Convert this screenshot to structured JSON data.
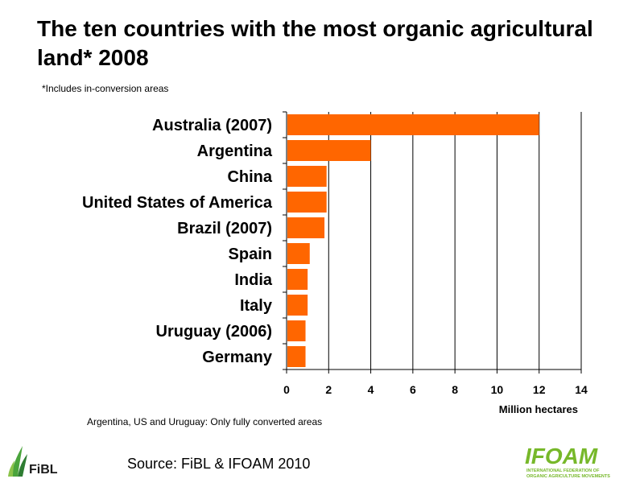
{
  "title": "The ten countries with the most organic agricultural land* 2008",
  "subtitle": "*Includes in-conversion areas",
  "footnote": "Argentina, US and Uruguay: Only fully converted areas",
  "source": "Source: FiBL & IFOAM 2010",
  "logos": {
    "fibl": "FiBL",
    "ifoam": "IFOAM",
    "ifoam_tagline_1": "INTERNATIONAL FEDERATION OF",
    "ifoam_tagline_2": "ORGANIC AGRICULTURE MOVEMENTS"
  },
  "colors": {
    "bar": "#ff6600",
    "grid": "#000000",
    "ifoam_green": "#77b82a",
    "fibl_green": "#4aa43c"
  },
  "chart_data": {
    "type": "bar",
    "orientation": "horizontal",
    "categories": [
      "Australia (2007)",
      "Argentina",
      "China",
      "United States of America",
      "Brazil (2007)",
      "Spain",
      "India",
      "Italy",
      "Uruguay (2006)",
      "Germany"
    ],
    "values": [
      12.0,
      4.0,
      1.9,
      1.9,
      1.8,
      1.1,
      1.0,
      1.0,
      0.9,
      0.9
    ],
    "xlabel": "Million hectares",
    "xlim": [
      0,
      14
    ],
    "xticks": [
      0,
      2,
      4,
      6,
      8,
      10,
      12,
      14
    ],
    "grid": true
  }
}
